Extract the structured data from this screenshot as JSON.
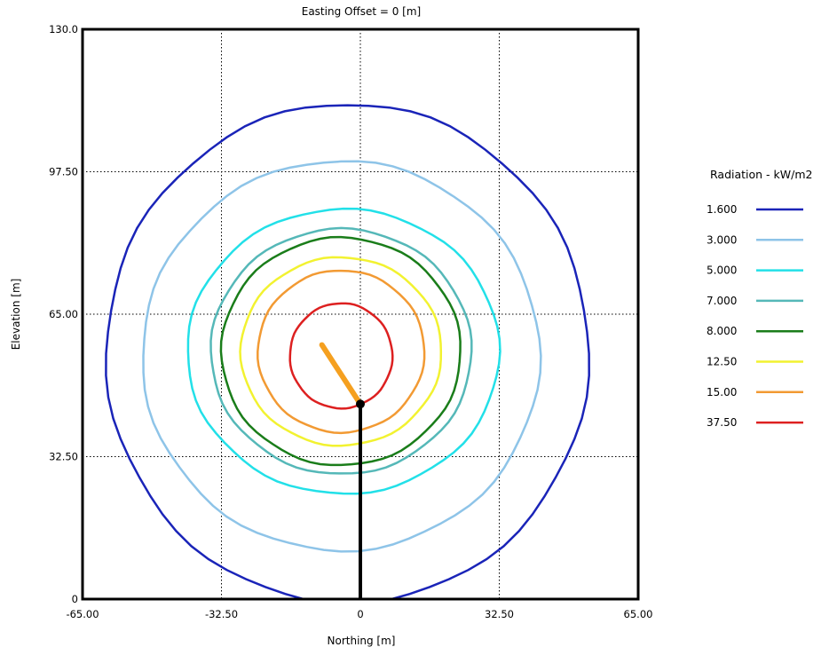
{
  "chart_data": {
    "type": "line",
    "title": "Easting Offset = 0 [m]",
    "xlabel": "Northing [m]",
    "ylabel": "Elevation [m]",
    "xlim": [
      -65,
      65
    ],
    "ylim": [
      0,
      130
    ],
    "x_ticks": [
      "-65.00",
      "-32.50",
      "0",
      "32.50",
      "65.00"
    ],
    "x_tick_values": [
      -65,
      -32.5,
      0,
      32.5,
      65
    ],
    "y_ticks": [
      "0",
      "32.50",
      "65.00",
      "97.50",
      "130.0"
    ],
    "y_tick_values": [
      0,
      32.5,
      65,
      97.5,
      130
    ],
    "grid": "dotted",
    "legend_title": "Radiation - kW/m2",
    "legend_position": "right",
    "series": [
      {
        "name": "1.600",
        "color": "#1a24b8",
        "center": [
          -3.0,
          56.0
        ],
        "radius_x": 56.5,
        "radius_y": 57.0
      },
      {
        "name": "3.000",
        "color": "#8ec4e8",
        "center": [
          -4.5,
          55.5
        ],
        "radius_x": 46.5,
        "radius_y": 44.5
      },
      {
        "name": "5.000",
        "color": "#22e0e8",
        "center": [
          -4.0,
          56.5
        ],
        "radius_x": 36.5,
        "radius_y": 32.5
      },
      {
        "name": "7.000",
        "color": "#55b8b8",
        "center": [
          -4.5,
          56.5
        ],
        "radius_x": 30.5,
        "radius_y": 28.0
      },
      {
        "name": "8.000",
        "color": "#1a7d1a",
        "center": [
          -4.5,
          56.5
        ],
        "radius_x": 28.0,
        "radius_y": 26.0
      },
      {
        "name": "12.50",
        "color": "#f2f230",
        "center": [
          -4.5,
          56.5
        ],
        "radius_x": 23.5,
        "radius_y": 21.5
      },
      {
        "name": "15.00",
        "color": "#f29a33",
        "center": [
          -4.5,
          56.5
        ],
        "radius_x": 19.5,
        "radius_y": 18.5
      },
      {
        "name": "37.50",
        "color": "#dd2020",
        "center": [
          -4.5,
          55.5
        ],
        "radius_x": 12.0,
        "radius_y": 12.0
      }
    ],
    "stack": {
      "x": [
        0,
        0
      ],
      "y": [
        0,
        44.5
      ],
      "color": "#000000"
    },
    "flame": {
      "x": [
        0,
        -9
      ],
      "y": [
        44.5,
        58
      ],
      "color": "#f5a020"
    }
  }
}
